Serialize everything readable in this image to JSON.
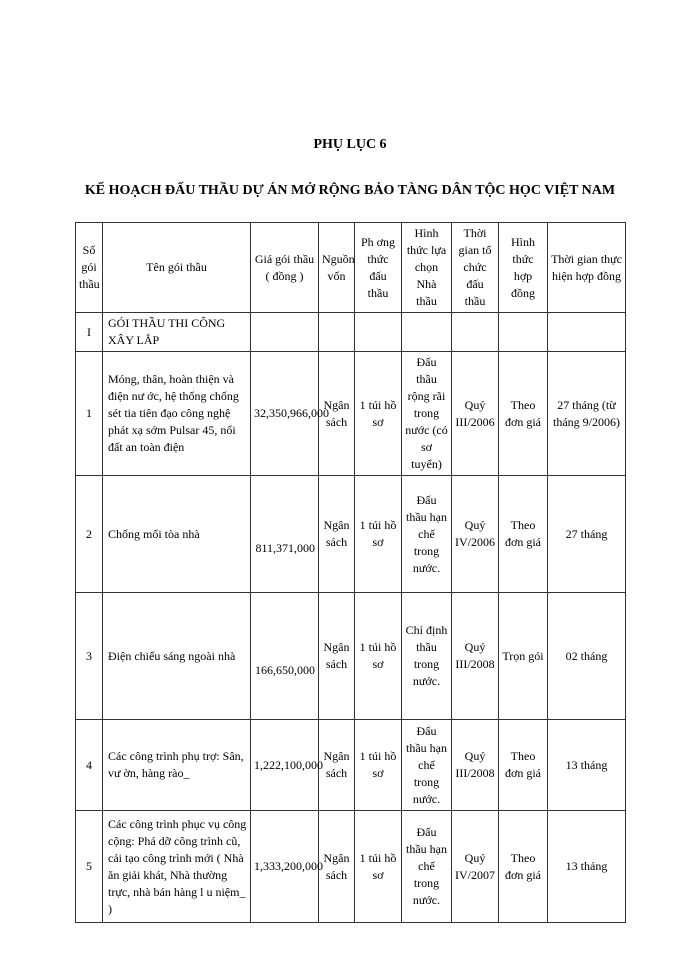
{
  "title": "PHỤ LỤC 6",
  "subtitle": "KẾ HOẠCH ĐẤU THẦU DỰ ÁN MỞ RỘNG BẢO TÀNG DÂN TỘC HỌC VIỆT NAM",
  "headers": [
    "Số gói thầu",
    "Tên gói thầu",
    "Giá gói thầu ( đồng )",
    "Nguồn vốn",
    "Ph   ơng thức đấu thầu",
    "Hình thức lựa chọn Nhà thầu",
    "Thời gian tổ chức đấu thầu",
    "Hình thức hợp đồng",
    "Thời gian thực hiện hợp đồng"
  ],
  "section": {
    "no": "I",
    "name": "GÓI THẦU THI CÔNG XÂY LẮP"
  },
  "rows": [
    {
      "no": "1",
      "name": "Móng, thân, hoàn thiện và điện nư   ớc, hệ thống chống sét tia tiên đạo công nghệ phát xạ sớm Pulsar 45, nối đất an toàn điện",
      "price": "32,350,966,000",
      "source": "Ngân sách",
      "method": "1 túi hồ sơ",
      "selection": "Đấu thầu rộng rãi trong nước (có sơ tuyển)",
      "time": "Quý III/2006",
      "contract": "Theo đơn giá",
      "duration": "27 tháng (từ tháng 9/2006)"
    },
    {
      "no": "2",
      "name": "Chống mối tòa nhà",
      "price": "811,371,000",
      "source": "Ngân sách",
      "method": "1 túi hồ sơ",
      "selection": "Đấu thầu hạn chế trong nước.",
      "time": "Quý IV/2006",
      "contract": "Theo đơn giá",
      "duration": "27 tháng"
    },
    {
      "no": "3",
      "name": "Điện chiếu sáng ngoài nhà",
      "price": "166,650,000",
      "source": "Ngân sách",
      "method": "1 túi hồ sơ",
      "selection": "Chỉ định thầu trong nước.",
      "time": "Quý III/2008",
      "contract": "Trọn gói",
      "duration": "02 tháng"
    },
    {
      "no": "4",
      "name": "Các công trình phụ trợ: Sân, vư   ờn, hàng rào_",
      "price": "1,222,100,000",
      "source": "Ngân sách",
      "method": "1 túi hồ sơ",
      "selection": "Đấu thầu hạn chế trong nước.",
      "time": "Quý III/2008",
      "contract": "Theo đơn giá",
      "duration": "13 tháng"
    },
    {
      "no": "5",
      "name": "Các công trình phục vụ công cộng: Phá dỡ công trình cũ, cải tạo công trình mới ( Nhà ăn giải khát, Nhà thường trực, nhà bán hàng l   u niệm_ )",
      "price": "1,333,200,000",
      "source": "Ngân sách",
      "method": "1 túi hồ sơ",
      "selection": "Đấu thầu hạn chế trong nước.",
      "time": "Quý IV/2007",
      "contract": "Theo đơn giá",
      "duration": "13 tháng"
    }
  ]
}
